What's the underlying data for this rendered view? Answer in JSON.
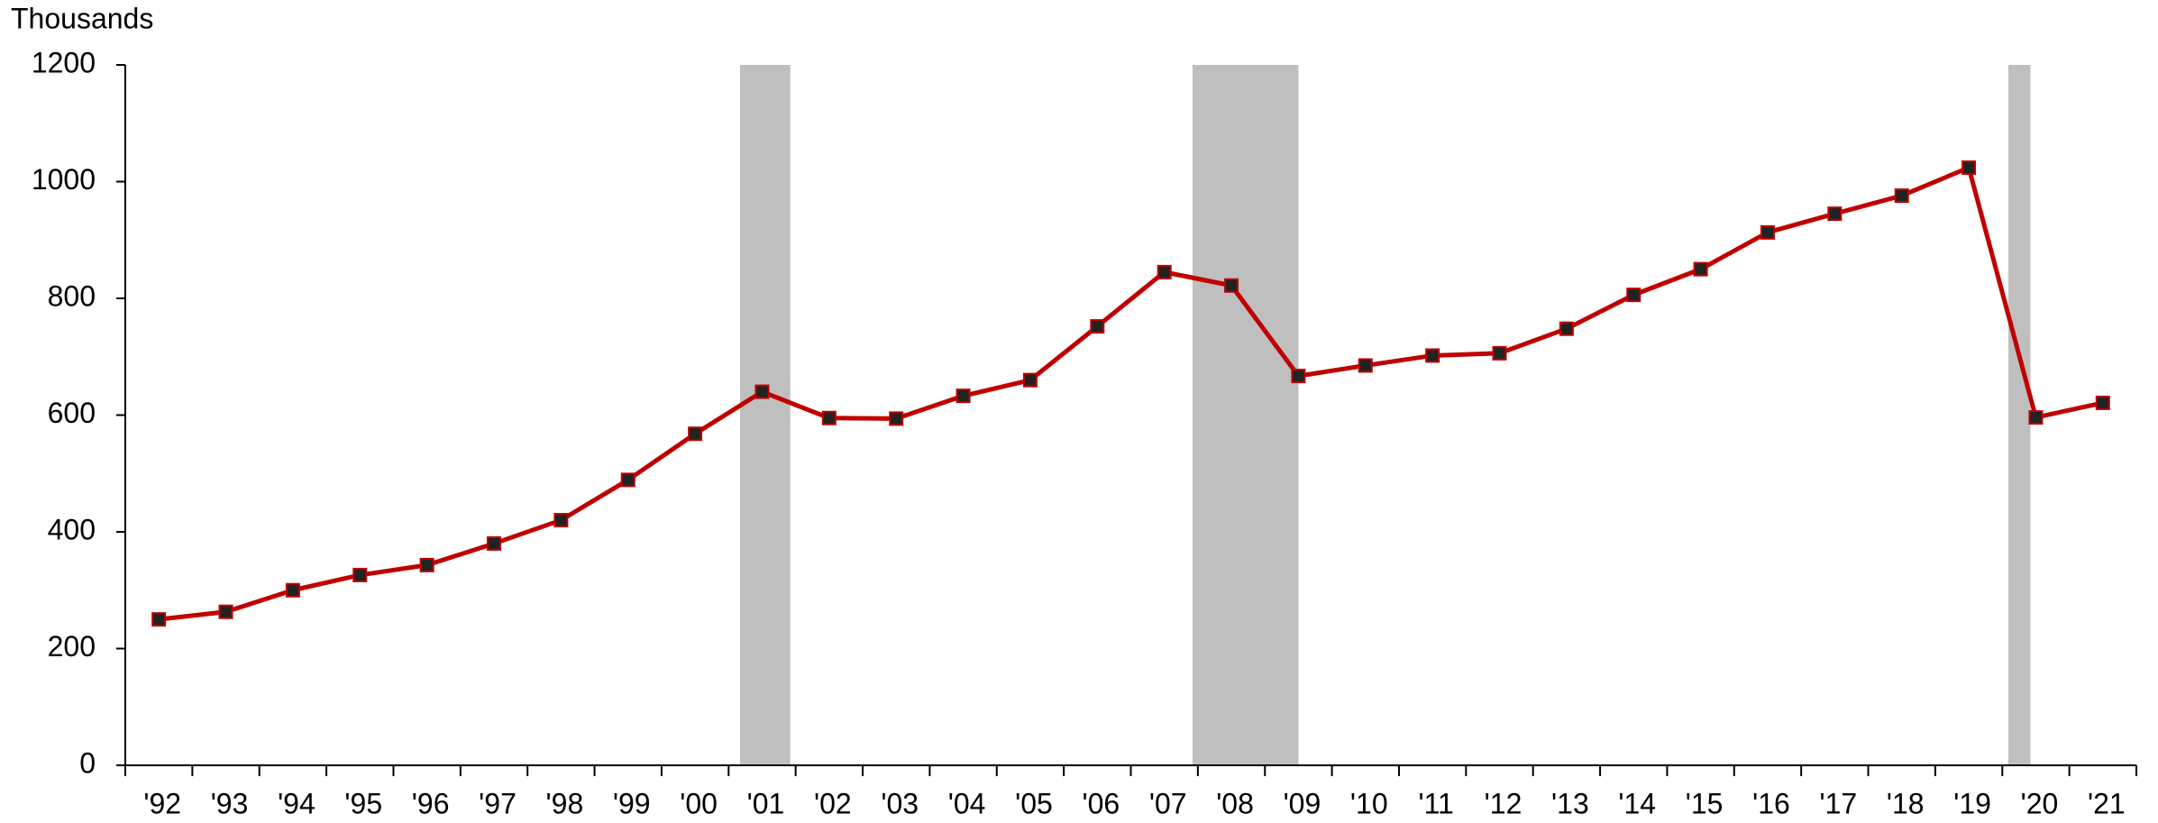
{
  "chart_data": {
    "type": "line",
    "y_axis_label": "Thousands",
    "categories": [
      "'92",
      "'93",
      "'94",
      "'95",
      "'96",
      "'97",
      "'98",
      "'99",
      "'00",
      "'01",
      "'02",
      "'03",
      "'04",
      "'05",
      "'06",
      "'07",
      "'08",
      "'09",
      "'10",
      "'11",
      "'12",
      "'13",
      "'14",
      "'15",
      "'16",
      "'17",
      "'18",
      "'19",
      "'20",
      "'21"
    ],
    "series": [
      {
        "color": "#c00000",
        "marker_color": "#222222",
        "values": [
          250,
          263,
          300,
          326,
          343,
          380,
          420,
          489,
          568,
          640,
          595,
          594,
          633,
          660,
          752,
          845,
          822,
          667,
          685,
          702,
          706,
          748,
          806,
          850,
          913,
          945,
          976,
          1024,
          596,
          621
        ]
      }
    ],
    "shaded_ranges": [
      [
        9.17,
        9.92
      ],
      [
        15.92,
        17.5
      ],
      [
        28.09,
        28.42
      ]
    ],
    "shade_color": "#bfbfbf",
    "ylim": [
      0,
      1200
    ],
    "yticks": [
      0,
      200,
      400,
      600,
      800,
      1000,
      1200
    ],
    "grid": false
  }
}
